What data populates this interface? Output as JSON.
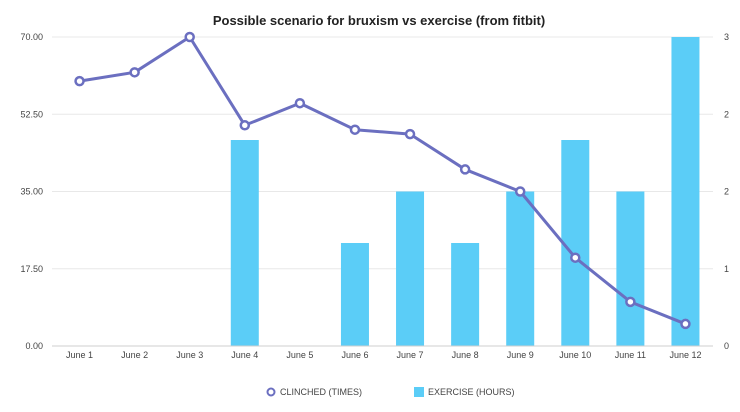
{
  "chart_data": {
    "type": "bar+line",
    "title": "Possible scenario for bruxism vs exercise (from fitbit)",
    "categories": [
      "June 1",
      "June 2",
      "June 3",
      "June 4",
      "June 5",
      "June 6",
      "June 7",
      "June 8",
      "June 9",
      "June 10",
      "June 11",
      "June 12"
    ],
    "left_axis": {
      "ylim": [
        0,
        70
      ],
      "ticks": [
        0,
        17.5,
        35,
        52.5,
        70
      ],
      "tick_labels": [
        "0.00",
        "17.50",
        "35.00",
        "52.50",
        "70.00"
      ]
    },
    "right_axis": {
      "ylim": [
        0,
        3
      ],
      "ticks": [
        0,
        0.75,
        1.5,
        2.25,
        3
      ],
      "tick_labels": [
        "0",
        "1",
        "2",
        "2",
        "3"
      ]
    },
    "series": [
      {
        "name": "CLINCHED (TIMES)",
        "type": "line",
        "axis": "left",
        "color": "#6b6fc0",
        "values": [
          60,
          62,
          70,
          50,
          55,
          49,
          48,
          40,
          35,
          20,
          10,
          5
        ]
      },
      {
        "name": "EXERCISE (HOURS)",
        "type": "bar",
        "axis": "right",
        "color": "#5bcdf7",
        "values": [
          0,
          0,
          0,
          2,
          0,
          1,
          1.5,
          1,
          1.5,
          2,
          1.5,
          3
        ]
      }
    ],
    "legend": [
      {
        "label": "CLINCHED (TIMES)",
        "marker": "circle",
        "color": "#6b6fc0"
      },
      {
        "label": "EXERCISE (HOURS)",
        "marker": "square",
        "color": "#5bcdf7"
      }
    ],
    "grid": true,
    "legend_position": "bottom-center"
  }
}
